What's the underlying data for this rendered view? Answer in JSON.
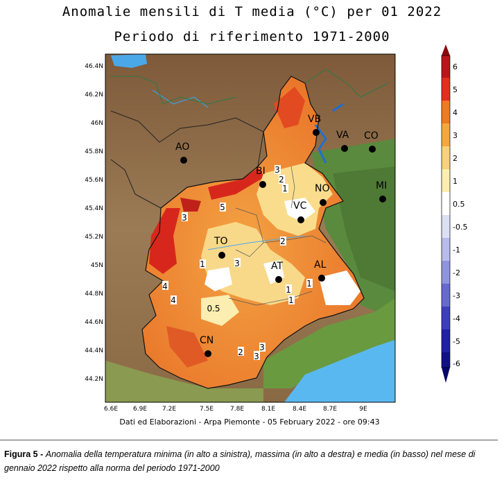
{
  "title": "Anomalie mensili di T media (°C) per 01 2022",
  "subtitle": "Periodo di riferimento 1971-2000",
  "credit": "Dati ed Elaborazioni - Arpa Piemonte - 05 February 2022 - ore 09:43",
  "caption": {
    "label": "Figura 5 -",
    "text": "Anomalia della temperatura minima (in alto a sinistra), massima (in alto a destra) e media (in basso) nel mese di gennaio 2022 rispetto alla norma del periodo 1971-2000"
  },
  "axes": {
    "x_ticks": [
      "6.6E",
      "6.9E",
      "7.2E",
      "7.5E",
      "7.8E",
      "8.1E",
      "8.4E",
      "8.7E",
      "9E"
    ],
    "y_ticks": [
      "46.4N",
      "46.2N",
      "46N",
      "45.8N",
      "45.6N",
      "45.4N",
      "45.2N",
      "45N",
      "44.8N",
      "44.6N",
      "44.4N",
      "44.2N"
    ]
  },
  "cities": [
    {
      "name": "VB"
    },
    {
      "name": "VA"
    },
    {
      "name": "CO"
    },
    {
      "name": "AO"
    },
    {
      "name": "BI"
    },
    {
      "name": "NO"
    },
    {
      "name": "MI"
    },
    {
      "name": "VC"
    },
    {
      "name": "TO"
    },
    {
      "name": "AT"
    },
    {
      "name": "AL"
    },
    {
      "name": "CN"
    }
  ],
  "isolines": [
    "3",
    "2",
    "1",
    "5",
    "3",
    "2",
    "3",
    "1",
    "1",
    "1",
    "1",
    "4",
    "4",
    "0.5",
    "2",
    "3",
    "3"
  ],
  "colorbar": {
    "labels": [
      "6",
      "5",
      "4",
      "3",
      "2",
      "1",
      "0.5",
      "-0.5",
      "-1",
      "-2",
      "-3",
      "-4",
      "-5",
      "-6"
    ],
    "colors": [
      "#b8161a",
      "#e0301e",
      "#f07a1e",
      "#f5a83a",
      "#f7d27a",
      "#fbeeb0",
      "#ffffff",
      "#dde0f5",
      "#b7bcea",
      "#8f95dd",
      "#6669cf",
      "#3d3dbf",
      "#2020a8"
    ]
  }
}
